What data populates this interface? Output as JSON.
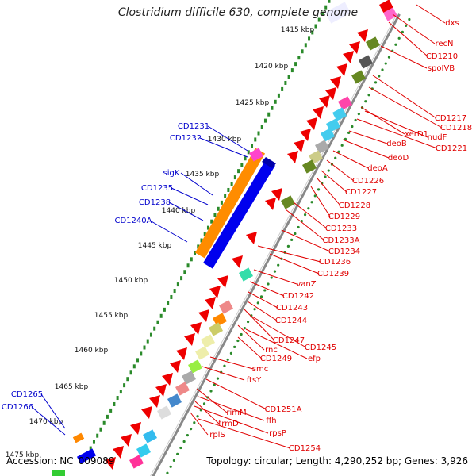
{
  "title": "Clostridium difficile 630, complete genome",
  "footer": {
    "accession": "Accession: NC_009089",
    "topology": "Topology: circular; Length: 4,290,252 bp; Genes: 3,926"
  },
  "colors": {
    "forward_arrow": "#ee0000",
    "reverse_arrow": "#ee0000",
    "backbone": "#888888",
    "tick_dots": "#2a8a2a",
    "orange_bar": "#ff8c00",
    "blue_bar": "#0000ee",
    "red_label": "#e00000",
    "blue_label": "#0000cc"
  },
  "kbp_ticks": [
    "1415 kbp",
    "1420 kbp",
    "1425 kbp",
    "1430 kbp",
    "1435 kbp",
    "1440 kbp",
    "1445 kbp",
    "1450 kbp",
    "1455 kbp",
    "1460 kbp",
    "1465 kbp",
    "1470 kbp",
    "1475 kbp"
  ],
  "blue_labels": [
    "CD1231",
    "CD1232",
    "sigK",
    "CD1235",
    "CD1238",
    "CD1240A",
    "CD1265",
    "CD1266"
  ],
  "red_labels": [
    "dxs",
    "recN",
    "CD1210",
    "spoIVB",
    "CD1217",
    "CD1218",
    "xerD1",
    "nudF",
    "CD1221",
    "deoB",
    "deoD",
    "deoA",
    "CD1226",
    "CD1227",
    "CD1228",
    "CD1229",
    "CD1233",
    "CD1233A",
    "CD1234",
    "CD1236",
    "CD1239",
    "vanZ",
    "CD1242",
    "CD1243",
    "CD1244",
    "CD1247",
    "CD1245",
    "rnc",
    "efp",
    "CD1249",
    "smc",
    "ftsY",
    "CD1251A",
    "rimM",
    "ffh",
    "trmD",
    "rpsP",
    "rplS",
    "CD1254"
  ]
}
